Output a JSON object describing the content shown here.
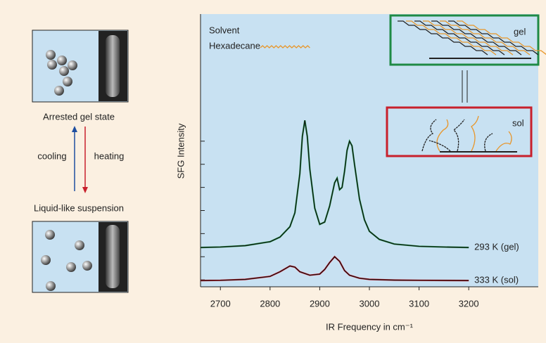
{
  "chart_data": {
    "type": "line",
    "x_label": "IR Frequency in cm⁻¹",
    "y_label": "SFG Intensity",
    "xlim": [
      2660,
      3340
    ],
    "xticks": [
      2700,
      2800,
      2900,
      3000,
      3100,
      3200
    ],
    "ylim": [
      0.7,
      12.5
    ],
    "yticks": [
      1,
      2,
      3,
      4,
      5,
      6,
      7
    ],
    "fit_color": "#111111",
    "series": [
      {
        "name": "293 K (gel)",
        "color": "#1f9a4a",
        "x": [
          2660,
          2700,
          2750,
          2800,
          2820,
          2840,
          2850,
          2860,
          2865,
          2870,
          2875,
          2880,
          2890,
          2900,
          2910,
          2920,
          2930,
          2935,
          2940,
          2945,
          2950,
          2955,
          2960,
          2965,
          2970,
          2980,
          2990,
          3000,
          3020,
          3050,
          3100,
          3150,
          3200
        ],
        "values": [
          2.4,
          2.42,
          2.48,
          2.65,
          2.85,
          3.3,
          3.9,
          5.6,
          7.2,
          7.9,
          7.2,
          5.8,
          4.1,
          3.4,
          3.5,
          4.2,
          5.2,
          5.4,
          4.9,
          5.0,
          5.7,
          6.6,
          7.0,
          6.8,
          6.0,
          4.5,
          3.6,
          3.1,
          2.75,
          2.55,
          2.45,
          2.42,
          2.4
        ]
      },
      {
        "name": "333 K (sol)",
        "color": "#d7202f",
        "x": [
          2660,
          2700,
          2750,
          2800,
          2820,
          2840,
          2850,
          2860,
          2880,
          2900,
          2910,
          2920,
          2930,
          2940,
          2950,
          2960,
          2980,
          3000,
          3050,
          3100,
          3200
        ],
        "values": [
          0.97,
          0.98,
          1.02,
          1.15,
          1.35,
          1.6,
          1.55,
          1.35,
          1.2,
          1.25,
          1.45,
          1.75,
          2.0,
          1.8,
          1.4,
          1.2,
          1.07,
          1.02,
          0.99,
          0.98,
          0.97
        ]
      }
    ],
    "annotations": {
      "solvent": "Solvent",
      "hexadecane": "Hexadecane",
      "gel": "gel",
      "sol": "sol"
    }
  },
  "schematic": {
    "top_state": "Arrested gel state",
    "cooling": "cooling",
    "heating": "heating",
    "bottom_state": "Liquid-like suspension"
  }
}
